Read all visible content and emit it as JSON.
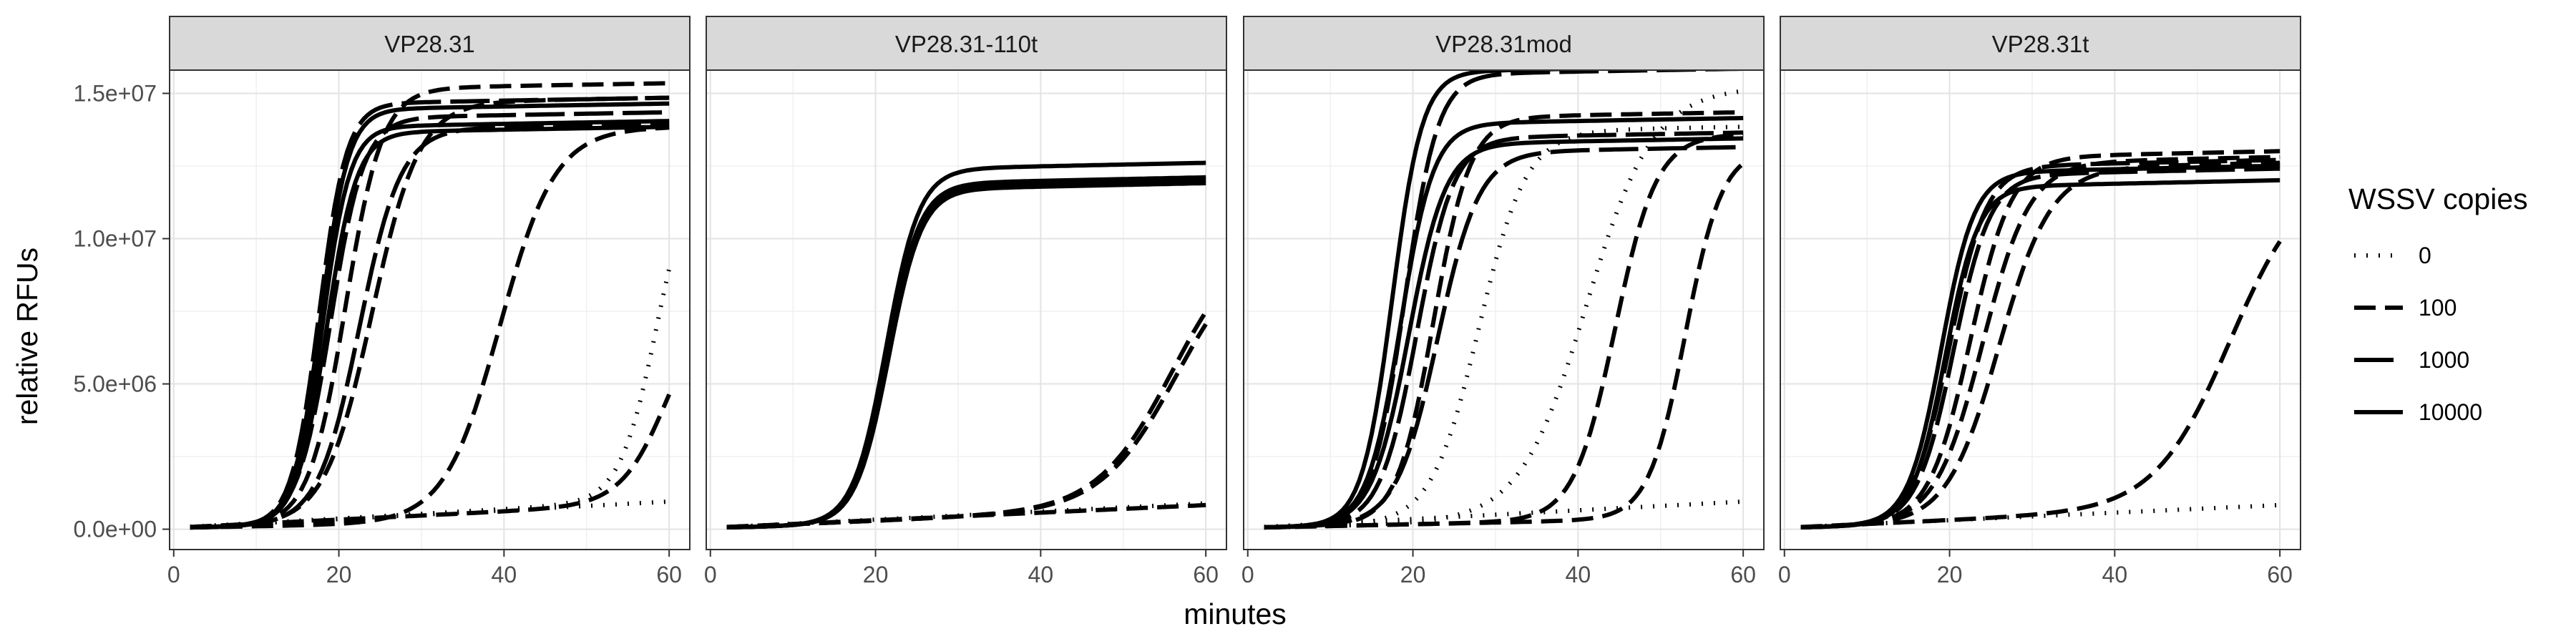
{
  "chart_data": {
    "type": "line",
    "xlabel": "minutes",
    "ylabel": "relative RFUs",
    "xlim": [
      -0.5,
      62.5
    ],
    "ylim": [
      -700000,
      15800000
    ],
    "x_ticks": [
      0,
      20,
      40,
      60
    ],
    "x_tick_labels": [
      "0",
      "20",
      "40",
      "60"
    ],
    "y_ticks": [
      0,
      5000000,
      10000000,
      15000000
    ],
    "y_tick_labels": [
      "0.0e+00",
      "5.0e+06",
      "1.0e+07",
      "1.5e+07"
    ],
    "grid": true,
    "legend": {
      "title": "WSSV copies",
      "placement": "right",
      "entries": [
        {
          "label": "0",
          "linetype": "dotted"
        },
        {
          "label": "100",
          "linetype": "dashed"
        },
        {
          "label": "1000",
          "linetype": "longdash"
        },
        {
          "label": "10000",
          "linetype": "solid"
        }
      ]
    },
    "panels": [
      {
        "title": "VP28.31",
        "series": [
          {
            "copies": "10000",
            "curve": {
              "base0": 50000,
              "slope": 5000,
              "top": 14300000,
              "mid": 17.8,
              "k": 0.6
            }
          },
          {
            "copies": "10000",
            "curve": {
              "base0": 50000,
              "slope": 5000,
              "top": 13700000,
              "mid": 18.0,
              "k": 0.6
            }
          },
          {
            "copies": "10000",
            "curve": {
              "base0": 50000,
              "slope": 5000,
              "top": 13500000,
              "mid": 18.5,
              "k": 0.55
            }
          },
          {
            "copies": "1000",
            "curve": {
              "base0": 50000,
              "slope": 5000,
              "top": 14500000,
              "mid": 17.6,
              "k": 0.6
            }
          },
          {
            "copies": "1000",
            "curve": {
              "base0": 50000,
              "slope": 5000,
              "top": 14000000,
              "mid": 19.0,
              "k": 0.5
            }
          },
          {
            "copies": "1000",
            "curve": {
              "base0": 50000,
              "slope": 5000,
              "top": 13600000,
              "mid": 22.5,
              "k": 0.4
            }
          },
          {
            "copies": "100",
            "curve": {
              "base0": 50000,
              "slope": 5000,
              "top": 15000000,
              "mid": 20.8,
              "k": 0.45
            }
          },
          {
            "copies": "100",
            "curve": {
              "base0": 50000,
              "slope": 5000,
              "top": 14500000,
              "mid": 24.0,
              "k": 0.35
            }
          },
          {
            "copies": "100",
            "curve": {
              "base0": 50000,
              "slope": 5000,
              "top": 13500000,
              "mid": 39.5,
              "k": 0.3
            }
          },
          {
            "copies": "100",
            "curve": {
              "base0": 50000,
              "slope": 14000,
              "top": 7500000,
              "mid": 60.0,
              "k": 0.35
            }
          },
          {
            "copies": "0",
            "curve": {
              "base0": 50000,
              "slope": 16000,
              "top": 12000000,
              "mid": 58.5,
              "k": 0.45
            }
          },
          {
            "copies": "0",
            "curve": {
              "base0": 50000,
              "slope": 15000,
              "top": 0,
              "mid": 80.0,
              "k": 0.3
            }
          }
        ]
      },
      {
        "title": "VP28.31-110t",
        "series": [
          {
            "copies": "10000",
            "curve": {
              "base0": 50000,
              "slope": 6000,
              "top": 12200000,
              "mid": 21.3,
              "k": 0.5
            }
          },
          {
            "copies": "10000",
            "curve": {
              "base0": 50000,
              "slope": 6000,
              "top": 11600000,
              "mid": 21.5,
              "k": 0.5
            }
          },
          {
            "copies": "10000",
            "curve": {
              "base0": 50000,
              "slope": 6000,
              "top": 11500000,
              "mid": 21.6,
              "k": 0.5
            }
          },
          {
            "copies": "10000",
            "curve": {
              "base0": 50000,
              "slope": 6000,
              "top": 11700000,
              "mid": 21.4,
              "k": 0.5
            }
          },
          {
            "copies": "100",
            "curve": {
              "base0": 50000,
              "slope": 12000,
              "top": 9500000,
              "mid": 56.0,
              "k": 0.22
            }
          },
          {
            "copies": "100",
            "curve": {
              "base0": 50000,
              "slope": 12000,
              "top": 9200000,
              "mid": 56.5,
              "k": 0.22
            }
          },
          {
            "copies": "100",
            "curve": {
              "base0": 50000,
              "slope": 13000,
              "top": 0,
              "mid": 80.0,
              "k": 0.3
            }
          },
          {
            "copies": "0",
            "curve": {
              "base0": 50000,
              "slope": 14000,
              "top": 0,
              "mid": 80.0,
              "k": 0.3
            }
          }
        ]
      },
      {
        "title": "VP28.31mod",
        "series": [
          {
            "copies": "10000",
            "curve": {
              "base0": 50000,
              "slope": 5000,
              "top": 15600000,
              "mid": 17.5,
              "k": 0.55
            }
          },
          {
            "copies": "10000",
            "curve": {
              "base0": 50000,
              "slope": 5000,
              "top": 13800000,
              "mid": 18.5,
              "k": 0.5
            }
          },
          {
            "copies": "10000",
            "curve": {
              "base0": 50000,
              "slope": 5000,
              "top": 13100000,
              "mid": 19.5,
              "k": 0.45
            }
          },
          {
            "copies": "1000",
            "curve": {
              "base0": 50000,
              "slope": 5000,
              "top": 15500000,
              "mid": 19.0,
              "k": 0.5
            }
          },
          {
            "copies": "1000",
            "curve": {
              "base0": 50000,
              "slope": 5000,
              "top": 13300000,
              "mid": 20.5,
              "k": 0.45
            }
          },
          {
            "copies": "1000",
            "curve": {
              "base0": 50000,
              "slope": 5000,
              "top": 12800000,
              "mid": 23.0,
              "k": 0.4
            }
          },
          {
            "copies": "100",
            "curve": {
              "base0": 50000,
              "slope": 5000,
              "top": 14000000,
              "mid": 22.5,
              "k": 0.45
            }
          },
          {
            "copies": "100",
            "curve": {
              "base0": 50000,
              "slope": 6000,
              "top": 13200000,
              "mid": 44.5,
              "k": 0.4
            }
          },
          {
            "copies": "100",
            "curve": {
              "base0": 50000,
              "slope": 6000,
              "top": 12700000,
              "mid": 53.0,
              "k": 0.45
            }
          },
          {
            "copies": "0",
            "curve": {
              "base0": 50000,
              "slope": 5000,
              "top": 13500000,
              "mid": 28.0,
              "k": 0.35
            }
          },
          {
            "copies": "0",
            "curve": {
              "base0": 50000,
              "slope": 6000,
              "top": 14800000,
              "mid": 41.0,
              "k": 0.25
            }
          },
          {
            "copies": "0",
            "curve": {
              "base0": 50000,
              "slope": 15000,
              "top": 0,
              "mid": 80.0,
              "k": 0.3
            }
          }
        ]
      },
      {
        "title": "VP28.31t",
        "series": [
          {
            "copies": "10000",
            "curve": {
              "base0": 50000,
              "slope": 6000,
              "top": 12100000,
              "mid": 19.0,
              "k": 0.5
            }
          },
          {
            "copies": "10000",
            "curve": {
              "base0": 50000,
              "slope": 6000,
              "top": 11600000,
              "mid": 19.5,
              "k": 0.5
            }
          },
          {
            "copies": "1000",
            "curve": {
              "base0": 50000,
              "slope": 6000,
              "top": 12300000,
              "mid": 20.0,
              "k": 0.45
            }
          },
          {
            "copies": "1000",
            "curve": {
              "base0": 50000,
              "slope": 6000,
              "top": 12000000,
              "mid": 20.5,
              "k": 0.45
            }
          },
          {
            "copies": "100",
            "curve": {
              "base0": 50000,
              "slope": 6000,
              "top": 12600000,
              "mid": 22.5,
              "k": 0.4
            }
          },
          {
            "copies": "100",
            "curve": {
              "base0": 50000,
              "slope": 6000,
              "top": 12400000,
              "mid": 24.0,
              "k": 0.35
            }
          },
          {
            "copies": "100",
            "curve": {
              "base0": 50000,
              "slope": 6000,
              "top": 12200000,
              "mid": 26.0,
              "k": 0.32
            }
          },
          {
            "copies": "100",
            "curve": {
              "base0": 50000,
              "slope": 13000,
              "top": 11500000,
              "mid": 54.0,
              "k": 0.22
            }
          },
          {
            "copies": "0",
            "curve": {
              "base0": 50000,
              "slope": 13000,
              "top": 0,
              "mid": 80.0,
              "k": 0.3
            }
          }
        ]
      }
    ]
  }
}
